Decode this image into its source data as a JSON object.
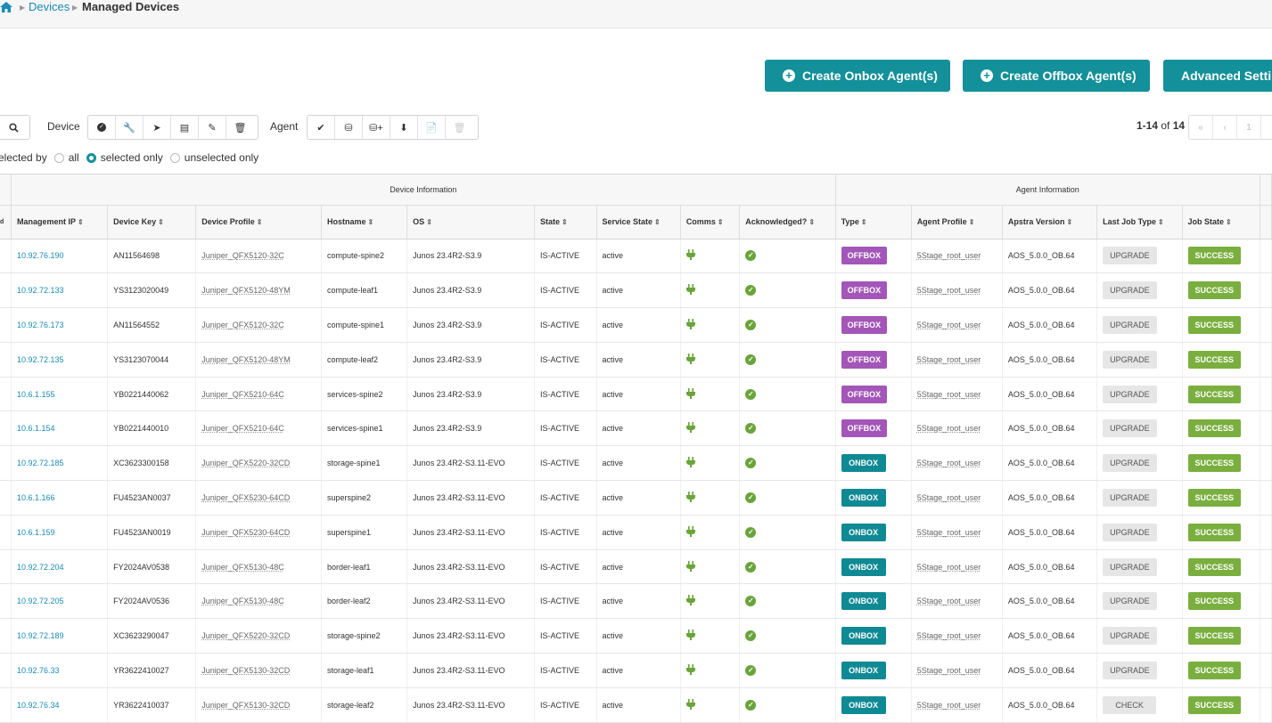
{
  "breadcrumb": {
    "devices": "Devices",
    "current": "Managed Devices"
  },
  "actions": {
    "create_onbox": "Create Onbox Agent(s)",
    "create_offbox": "Create Offbox Agent(s)",
    "advanced": "Advanced Settings"
  },
  "toolbar": {
    "device_label": "Device",
    "agent_label": "Agent",
    "device_icons": [
      "check-circle-icon",
      "wrench-icon",
      "rocket-icon",
      "archive-icon",
      "edit-icon",
      "trash-icon"
    ],
    "agent_icons": [
      "check-icon",
      "car-icon",
      "car-add-icon",
      "download-icon",
      "file-icon",
      "trash-icon"
    ]
  },
  "pager": {
    "range": "1-14",
    "of": "of",
    "total": "14"
  },
  "filter": {
    "label": "Selected by",
    "all": "all",
    "selected": "selected only",
    "unselected": "unselected only",
    "value": "selected only"
  },
  "table": {
    "groups": {
      "device": "Device Information",
      "agent": "Agent Information"
    },
    "columns": [
      "Management IP",
      "Device Key",
      "Device Profile",
      "Hostname",
      "OS",
      "State",
      "Service State",
      "Comms",
      "Acknowledged?",
      "Type",
      "Agent Profile",
      "Apstra Version",
      "Last Job Type",
      "Job State"
    ],
    "first_col_fragment": "d",
    "rows": [
      {
        "ip": "10.92.76.190",
        "key": "AN11564698",
        "profile": "Juniper_QFX5120-32C",
        "host": "compute-spine2",
        "os": "Junos 23.4R2-S3.9",
        "state": "IS-ACTIVE",
        "svc": "active",
        "type": "OFFBOX",
        "agent_profile": "5Stage_root_user",
        "version": "AOS_5.0.0_OB.64",
        "job_type": "UPGRADE",
        "job_state": "SUCCESS"
      },
      {
        "ip": "10.92.72.133",
        "key": "YS3123020049",
        "profile": "Juniper_QFX5120-48YM",
        "host": "compute-leaf1",
        "os": "Junos 23.4R2-S3.9",
        "state": "IS-ACTIVE",
        "svc": "active",
        "type": "OFFBOX",
        "agent_profile": "5Stage_root_user",
        "version": "AOS_5.0.0_OB.64",
        "job_type": "UPGRADE",
        "job_state": "SUCCESS"
      },
      {
        "ip": "10.92.76.173",
        "key": "AN11564552",
        "profile": "Juniper_QFX5120-32C",
        "host": "compute-spine1",
        "os": "Junos 23.4R2-S3.9",
        "state": "IS-ACTIVE",
        "svc": "active",
        "type": "OFFBOX",
        "agent_profile": "5Stage_root_user",
        "version": "AOS_5.0.0_OB.64",
        "job_type": "UPGRADE",
        "job_state": "SUCCESS"
      },
      {
        "ip": "10.92.72.135",
        "key": "YS3123070044",
        "profile": "Juniper_QFX5120-48YM",
        "host": "compute-leaf2",
        "os": "Junos 23.4R2-S3.9",
        "state": "IS-ACTIVE",
        "svc": "active",
        "type": "OFFBOX",
        "agent_profile": "5Stage_root_user",
        "version": "AOS_5.0.0_OB.64",
        "job_type": "UPGRADE",
        "job_state": "SUCCESS"
      },
      {
        "ip": "10.6.1.155",
        "key": "YB0221440062",
        "profile": "Juniper_QFX5210-64C",
        "host": "services-spine2",
        "os": "Junos 23.4R2-S3.9",
        "state": "IS-ACTIVE",
        "svc": "active",
        "type": "OFFBOX",
        "agent_profile": "5Stage_root_user",
        "version": "AOS_5.0.0_OB.64",
        "job_type": "UPGRADE",
        "job_state": "SUCCESS"
      },
      {
        "ip": "10.6.1.154",
        "key": "YB0221440010",
        "profile": "Juniper_QFX5210-64C",
        "host": "services-spine1",
        "os": "Junos 23.4R2-S3.9",
        "state": "IS-ACTIVE",
        "svc": "active",
        "type": "OFFBOX",
        "agent_profile": "5Stage_root_user",
        "version": "AOS_5.0.0_OB.64",
        "job_type": "UPGRADE",
        "job_state": "SUCCESS"
      },
      {
        "ip": "10.92.72.185",
        "key": "XC3623300158",
        "profile": "Juniper_QFX5220-32CD",
        "host": "storage-spine1",
        "os": "Junos 23.4R2-S3.11-EVO",
        "state": "IS-ACTIVE",
        "svc": "active",
        "type": "ONBOX",
        "agent_profile": "5Stage_root_user",
        "version": "AOS_5.0.0_OB.64",
        "job_type": "UPGRADE",
        "job_state": "SUCCESS"
      },
      {
        "ip": "10.6.1.166",
        "key": "FU4523AN0037",
        "profile": "Juniper_QFX5230-64CD",
        "host": "superspine2",
        "os": "Junos 23.4R2-S3.11-EVO",
        "state": "IS-ACTIVE",
        "svc": "active",
        "type": "ONBOX",
        "agent_profile": "5Stage_root_user",
        "version": "AOS_5.0.0_OB.64",
        "job_type": "UPGRADE",
        "job_state": "SUCCESS"
      },
      {
        "ip": "10.6.1.159",
        "key": "FU4523AN0019",
        "profile": "Juniper_QFX5230-64CD",
        "host": "superspine1",
        "os": "Junos 23.4R2-S3.11-EVO",
        "state": "IS-ACTIVE",
        "svc": "active",
        "type": "ONBOX",
        "agent_profile": "5Stage_root_user",
        "version": "AOS_5.0.0_OB.64",
        "job_type": "UPGRADE",
        "job_state": "SUCCESS"
      },
      {
        "ip": "10.92.72.204",
        "key": "FY2024AV0538",
        "profile": "Juniper_QFX5130-48C",
        "host": "border-leaf1",
        "os": "Junos 23.4R2-S3.11-EVO",
        "state": "IS-ACTIVE",
        "svc": "active",
        "type": "ONBOX",
        "agent_profile": "5Stage_root_user",
        "version": "AOS_5.0.0_OB.64",
        "job_type": "UPGRADE",
        "job_state": "SUCCESS"
      },
      {
        "ip": "10.92.72.205",
        "key": "FY2024AV0536",
        "profile": "Juniper_QFX5130-48C",
        "host": "border-leaf2",
        "os": "Junos 23.4R2-S3.11-EVO",
        "state": "IS-ACTIVE",
        "svc": "active",
        "type": "ONBOX",
        "agent_profile": "5Stage_root_user",
        "version": "AOS_5.0.0_OB.64",
        "job_type": "UPGRADE",
        "job_state": "SUCCESS"
      },
      {
        "ip": "10.92.72.189",
        "key": "XC3623290047",
        "profile": "Juniper_QFX5220-32CD",
        "host": "storage-spine2",
        "os": "Junos 23.4R2-S3.11-EVO",
        "state": "IS-ACTIVE",
        "svc": "active",
        "type": "ONBOX",
        "agent_profile": "5Stage_root_user",
        "version": "AOS_5.0.0_OB.64",
        "job_type": "UPGRADE",
        "job_state": "SUCCESS"
      },
      {
        "ip": "10.92.76.33",
        "key": "YR3622410027",
        "profile": "Juniper_QFX5130-32CD",
        "host": "storage-leaf1",
        "os": "Junos 23.4R2-S3.11-EVO",
        "state": "IS-ACTIVE",
        "svc": "active",
        "type": "ONBOX",
        "agent_profile": "5Stage_root_user",
        "version": "AOS_5.0.0_OB.64",
        "job_type": "UPGRADE",
        "job_state": "SUCCESS"
      },
      {
        "ip": "10.92.76.34",
        "key": "YR3622410037",
        "profile": "Juniper_QFX5130-32CD",
        "host": "storage-leaf2",
        "os": "Junos 23.4R2-S3.11-EVO",
        "state": "IS-ACTIVE",
        "svc": "active",
        "type": "ONBOX",
        "agent_profile": "5Stage_root_user",
        "version": "AOS_5.0.0_OB.64",
        "job_type": "CHECK",
        "job_state": "SUCCESS"
      }
    ]
  },
  "colors": {
    "teal": "#13909a",
    "offbox": "#a356b8",
    "onbox": "#0f8a94",
    "success": "#7aaf3f",
    "link": "#1a8bb6"
  }
}
